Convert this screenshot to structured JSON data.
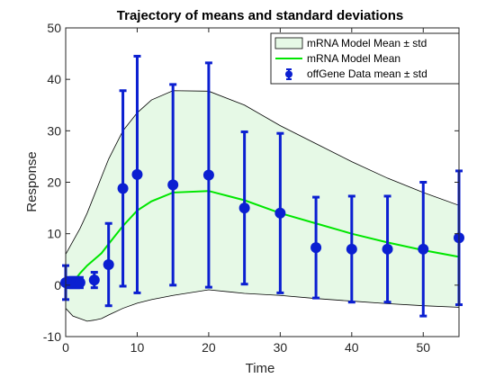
{
  "chart_data": {
    "type": "line",
    "title": "Trajectory of means and standard deviations",
    "xlabel": "Time",
    "ylabel": "Response",
    "xlim": [
      0,
      55
    ],
    "ylim": [
      -10,
      50
    ],
    "xticks": [
      0,
      10,
      20,
      30,
      40,
      50
    ],
    "yticks": [
      -10,
      0,
      10,
      20,
      30,
      40,
      50
    ],
    "grid": false,
    "legend_position": "top-right",
    "legend": [
      "mRNA Model Mean ± std",
      "mRNA Model Mean",
      "offGene Data mean ± std"
    ],
    "colors": {
      "band_fill": "#e6f9e6",
      "band_edge": "#000000",
      "model_mean": "#00e600",
      "data": "#0b1fd1"
    },
    "model": {
      "x": [
        0,
        1,
        2,
        3,
        4,
        5,
        6,
        8,
        10,
        12,
        15,
        20,
        25,
        30,
        35,
        40,
        45,
        50,
        55
      ],
      "mean": [
        0,
        0.5,
        2.3,
        3.8,
        5.0,
        6.2,
        8.0,
        11.5,
        14.5,
        16.3,
        18.0,
        18.3,
        16.5,
        14.0,
        12.0,
        10.0,
        8.3,
        6.8,
        5.5
      ],
      "upper": [
        6.0,
        8.5,
        11.0,
        14.0,
        17.5,
        21.0,
        24.5,
        30.0,
        33.5,
        36.0,
        37.8,
        37.7,
        35.0,
        31.0,
        27.5,
        24.0,
        20.8,
        18.0,
        15.5
      ],
      "lower": [
        -4.5,
        -6.0,
        -6.5,
        -7.0,
        -6.8,
        -6.5,
        -5.8,
        -4.5,
        -3.5,
        -2.8,
        -2.0,
        -0.9,
        -1.6,
        -2.0,
        -2.6,
        -3.1,
        -3.6,
        -4.0,
        -4.3
      ]
    },
    "data_series": {
      "x": [
        0,
        0.5,
        1,
        1.5,
        2,
        4,
        6,
        8,
        10,
        15,
        20,
        25,
        30,
        35,
        40,
        45,
        50,
        55
      ],
      "mean": [
        0.5,
        0.5,
        0.5,
        0.5,
        0.5,
        1.0,
        4.0,
        18.8,
        21.5,
        19.5,
        21.4,
        15.0,
        14.0,
        7.3,
        7.0,
        7.0,
        7.0,
        9.2
      ],
      "err": [
        3.3,
        1.0,
        1.0,
        1.0,
        1.0,
        1.5,
        8.0,
        19.0,
        23.0,
        19.5,
        21.8,
        14.8,
        15.5,
        9.8,
        10.3,
        10.3,
        13.0,
        13.0
      ]
    }
  }
}
